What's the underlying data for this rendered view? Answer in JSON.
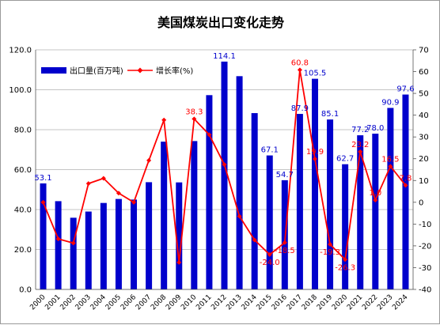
{
  "chart_data": {
    "type": "bar-line",
    "title": "美国煤炭出口变化走势",
    "categories": [
      "2000",
      "2001",
      "2002",
      "2003",
      "2004",
      "2005",
      "2006",
      "2007",
      "2008",
      "2009",
      "2010",
      "2011",
      "2012",
      "2013",
      "2014",
      "2015",
      "2016",
      "2017",
      "2018",
      "2019",
      "2020",
      "2021",
      "2022",
      "2023",
      "2024"
    ],
    "series": [
      {
        "name": "出口量(百万吨)",
        "type": "bar",
        "axis": "left",
        "color": "#0000cc",
        "values": [
          53.1,
          44.2,
          35.9,
          39.0,
          43.3,
          45.3,
          45.0,
          53.7,
          74.0,
          53.6,
          74.3,
          97.3,
          114.1,
          106.8,
          88.3,
          67.1,
          54.7,
          87.9,
          105.5,
          85.1,
          62.7,
          77.2,
          78.0,
          90.9,
          97.6
        ]
      },
      {
        "name": "增长率(%)",
        "type": "line",
        "axis": "right",
        "color": "#ff0000",
        "values": [
          0.0,
          -16.8,
          -18.7,
          8.6,
          11.0,
          4.2,
          0.0,
          19.2,
          37.8,
          -27.6,
          38.3,
          31.0,
          17.3,
          -6.4,
          -17.3,
          -24.0,
          -18.5,
          60.8,
          19.9,
          -19.3,
          -26.3,
          23.2,
          1.0,
          16.5,
          7.8
        ]
      }
    ],
    "bar_labels": [
      {
        "index": 0,
        "text": "53.1"
      },
      {
        "index": 12,
        "text": "114.1"
      },
      {
        "index": 15,
        "text": "67.1"
      },
      {
        "index": 16,
        "text": "54.7"
      },
      {
        "index": 17,
        "text": "87.9"
      },
      {
        "index": 18,
        "text": "105.5"
      },
      {
        "index": 19,
        "text": "85.1"
      },
      {
        "index": 20,
        "text": "62.7"
      },
      {
        "index": 21,
        "text": "77.2"
      },
      {
        "index": 22,
        "text": "78.0"
      },
      {
        "index": 23,
        "text": "90.9"
      },
      {
        "index": 24,
        "text": "97.6"
      }
    ],
    "line_labels": [
      {
        "index": 10,
        "text": "38.3"
      },
      {
        "index": 15,
        "text": "-24.0"
      },
      {
        "index": 16,
        "text": "-18.5"
      },
      {
        "index": 17,
        "text": "60.8"
      },
      {
        "index": 18,
        "text": "19.9"
      },
      {
        "index": 19,
        "text": "-19.3"
      },
      {
        "index": 20,
        "text": "-26.3"
      },
      {
        "index": 21,
        "text": "23.2"
      },
      {
        "index": 22,
        "text": "1.0"
      },
      {
        "index": 23,
        "text": "16.5"
      },
      {
        "index": 24,
        "text": "7.8"
      }
    ],
    "left_axis": {
      "min": 0,
      "max": 120,
      "step": 20,
      "ticks": [
        "0.0",
        "20.0",
        "40.0",
        "60.0",
        "80.0",
        "100.0",
        "120.0"
      ]
    },
    "right_axis": {
      "min": -40,
      "max": 70,
      "step": 10,
      "ticks": [
        "-40",
        "-30",
        "-20",
        "-10",
        "0",
        "10",
        "20",
        "30",
        "40",
        "50",
        "60",
        "70"
      ]
    },
    "grid": "horizontal",
    "legend": "top-left"
  }
}
